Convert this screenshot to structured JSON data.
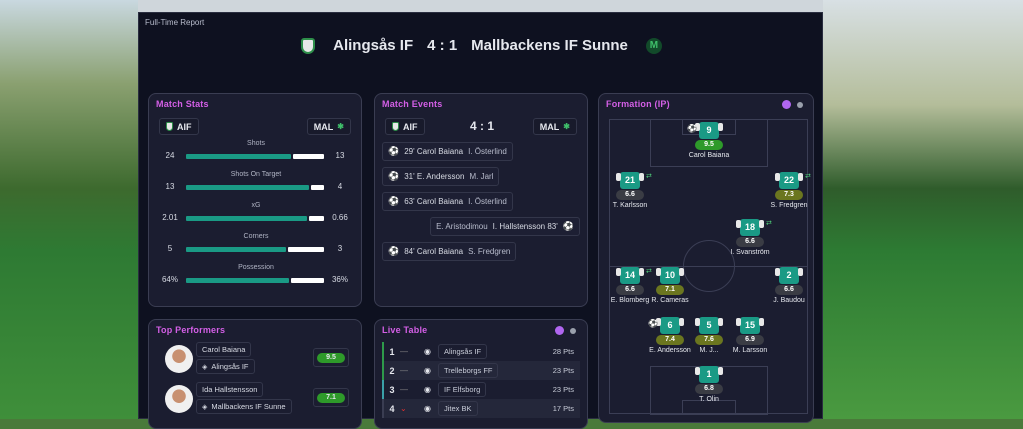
{
  "report_title": "Full-Time Report",
  "header": {
    "home": "Alingsås IF",
    "score": "4 : 1",
    "away": "Mallbackens IF Sunne"
  },
  "match_stats": {
    "title": "Match Stats",
    "home_abbr": "AIF",
    "away_abbr": "MAL",
    "stats": [
      {
        "label": "Shots",
        "home": "24",
        "away": "13",
        "home_share": 0.65
      },
      {
        "label": "Shots On Target",
        "home": "13",
        "away": "4",
        "home_share": 0.76
      },
      {
        "label": "xG",
        "home": "2.01",
        "away": "0.66",
        "home_share": 0.75
      },
      {
        "label": "Corners",
        "home": "5",
        "away": "3",
        "home_share": 0.62
      },
      {
        "label": "Possession",
        "home": "64%",
        "away": "36%",
        "home_share": 0.64
      }
    ]
  },
  "match_events": {
    "title": "Match Events",
    "home_abbr": "AIF",
    "away_abbr": "MAL",
    "score": "4 : 1",
    "events": [
      {
        "side": "home",
        "text": "29' Carol Baiana",
        "assist": "I. Österlind"
      },
      {
        "side": "home",
        "text": "31' E. Andersson",
        "assist": "M. Jarl"
      },
      {
        "side": "home",
        "text": "63' Carol Baiana",
        "assist": "I. Österlind"
      },
      {
        "side": "away",
        "text": "I. Hallstensson 83'",
        "assist": "E. Aristodimou"
      },
      {
        "side": "home",
        "text": "84' Carol Baiana",
        "assist": "S. Fredgren"
      }
    ]
  },
  "formation": {
    "title": "Formation (IP)",
    "players": [
      {
        "num": "9",
        "rating": "9.5",
        "name": "Carol Baiana",
        "tier": "g",
        "goal": true
      },
      {
        "num": "21",
        "rating": "6.6",
        "name": "T. Karlsson",
        "tier": "n",
        "sub": true
      },
      {
        "num": "22",
        "rating": "7.3",
        "name": "S. Fredgren",
        "tier": "o",
        "sub": true
      },
      {
        "num": "18",
        "rating": "6.6",
        "name": "I. Svanström",
        "tier": "n",
        "sub": true
      },
      {
        "num": "14",
        "rating": "6.6",
        "name": "E. Blomberg",
        "tier": "n",
        "sub": true
      },
      {
        "num": "10",
        "rating": "7.1",
        "name": "R. Cameras",
        "tier": "o"
      },
      {
        "num": "2",
        "rating": "6.6",
        "name": "J. Baudou",
        "tier": "n"
      },
      {
        "num": "6",
        "rating": "7.4",
        "name": "E. Andersson",
        "tier": "o",
        "goal": true
      },
      {
        "num": "5",
        "rating": "7.6",
        "name": "M. J...",
        "tier": "o"
      },
      {
        "num": "15",
        "rating": "6.9",
        "name": "M. Larsson",
        "tier": "n"
      },
      {
        "num": "1",
        "rating": "6.8",
        "name": "T. Olin",
        "tier": "n"
      }
    ]
  },
  "top_performers": {
    "title": "Top Performers",
    "players": [
      {
        "name": "Carol Baiana",
        "club": "Alingsås IF",
        "rating": "9.5"
      },
      {
        "name": "Ida Hallstensson",
        "club": "Mallbackens IF Sunne",
        "rating": "7.1"
      }
    ]
  },
  "live_table": {
    "title": "Live Table",
    "rows": [
      {
        "pos": "1",
        "move": "—",
        "team": "Alingsås IF",
        "pts": "28 Pts"
      },
      {
        "pos": "2",
        "move": "—",
        "team": "Trelleborgs FF",
        "pts": "23 Pts"
      },
      {
        "pos": "3",
        "move": "—",
        "team": "IF Elfsborg",
        "pts": "23 Pts"
      },
      {
        "pos": "4",
        "move": "⌄",
        "team": "Jitex BK",
        "pts": "17 Pts"
      }
    ]
  },
  "colors": {
    "accent": "#d35fe6",
    "home_bar": "#1a9a85",
    "away_bar": "#ffffff",
    "rating_top": "#2e9a2a"
  }
}
